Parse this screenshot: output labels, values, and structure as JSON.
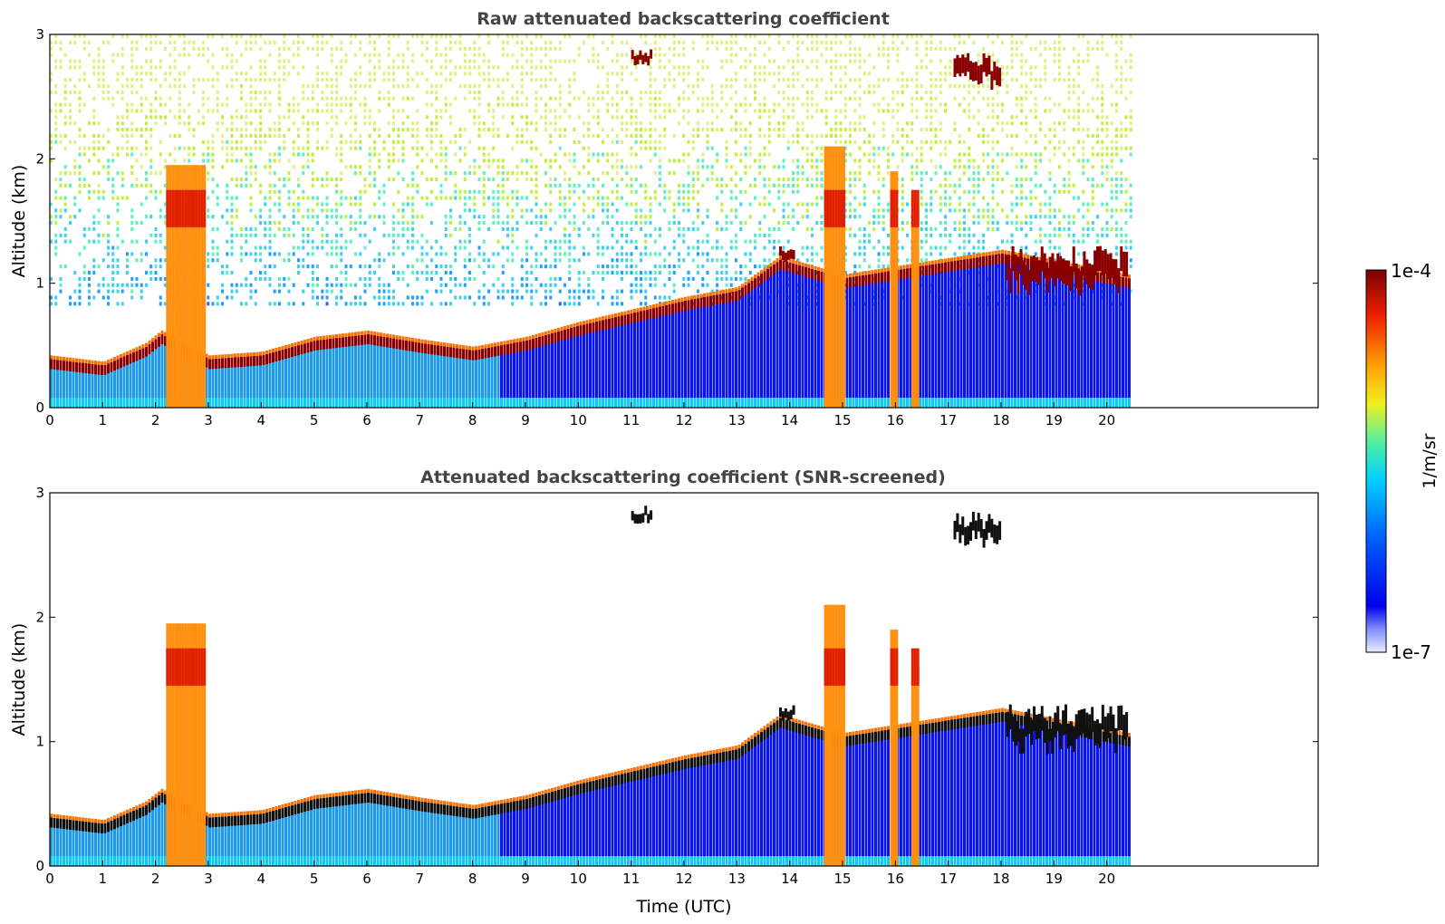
{
  "chart_data": [
    {
      "type": "heatmap",
      "title": "Raw attenuated backscattering coefficient",
      "xlabel": "",
      "ylabel": "Altitude (km)",
      "xlim": [
        0,
        24
      ],
      "ylim": [
        0,
        3
      ],
      "xticks": [
        "0",
        "1",
        "2",
        "3",
        "4",
        "5",
        "6",
        "7",
        "8",
        "9",
        "10",
        "11",
        "12",
        "13",
        "14",
        "15",
        "16",
        "17",
        "18",
        "19",
        "20"
      ],
      "yticks": [
        "0",
        "1",
        "2",
        "3"
      ],
      "data_end_hour": 20.45,
      "layer_top_km": [
        [
          0,
          0.35
        ],
        [
          1,
          0.3
        ],
        [
          1.8,
          0.45
        ],
        [
          2.1,
          0.55
        ],
        [
          3,
          0.35
        ],
        [
          4,
          0.38
        ],
        [
          5,
          0.5
        ],
        [
          6,
          0.55
        ],
        [
          7,
          0.48
        ],
        [
          8,
          0.42
        ],
        [
          9,
          0.5
        ],
        [
          10,
          0.62
        ],
        [
          11,
          0.72
        ],
        [
          12,
          0.82
        ],
        [
          13,
          0.9
        ],
        [
          13.8,
          1.15
        ],
        [
          15,
          1.0
        ],
        [
          18,
          1.2
        ],
        [
          20.4,
          1.0
        ]
      ]
    },
    {
      "type": "heatmap",
      "title": "Attenuated backscattering coefficient (SNR-screened)",
      "xlabel": "Time (UTC)",
      "ylabel": "Altitude (km)",
      "xlim": [
        0,
        24
      ],
      "ylim": [
        0,
        3
      ],
      "xticks": [
        "0",
        "1",
        "2",
        "3",
        "4",
        "5",
        "6",
        "7",
        "8",
        "9",
        "10",
        "11",
        "12",
        "13",
        "14",
        "15",
        "16",
        "17",
        "18",
        "19",
        "20"
      ],
      "yticks": [
        "0",
        "1",
        "2",
        "3"
      ],
      "data_end_hour": 20.45
    }
  ],
  "colorbar": {
    "label": "1/m/sr",
    "max_label": "1e-4",
    "min_label": "1e-7",
    "colormap": [
      "#e8ecff",
      "#1010f0",
      "#0050ff",
      "#00b4ff",
      "#30e0c0",
      "#d8f030",
      "#ffc000",
      "#ff5a00",
      "#e01000",
      "#7a0000"
    ]
  }
}
